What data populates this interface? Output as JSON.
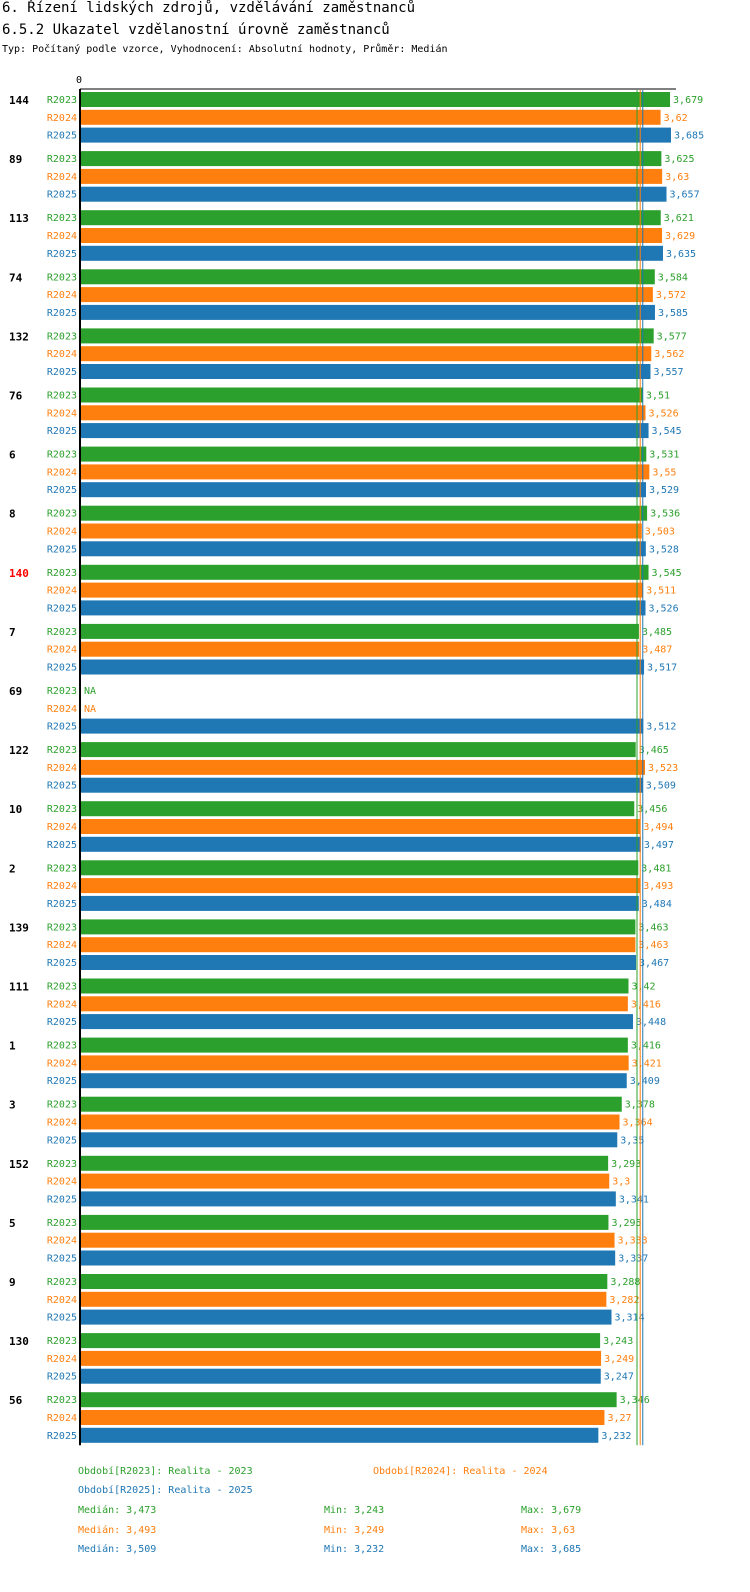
{
  "header": {
    "title": "6. Řízení lidských zdrojů, vzdělávání zaměstnanců",
    "subtitle": "6.5.2 Ukazatel vzdělanostní úrovně zaměstnanců",
    "type_line": "Typ: Počítaný podle vzorce, Vyhodnocení: Absolutní hodnoty, Průměr: Medián"
  },
  "colors": {
    "R2023": "#2ca02c",
    "R2024": "#ff7f0e",
    "R2025": "#1f77b4",
    "highlight": "#ff0000",
    "axis": "#000000"
  },
  "chart_data": {
    "type": "bar",
    "orientation": "horizontal",
    "axis_zero_label": "0",
    "xlim": [
      0,
      3.685
    ],
    "series_names": [
      "R2023",
      "R2024",
      "R2025"
    ],
    "highlighted_category": "140",
    "na_label": "NA",
    "median_lines": [
      3.473,
      3.493,
      3.509
    ],
    "categories": [
      {
        "label": "144",
        "values": [
          3.679,
          3.62,
          3.685
        ],
        "labels": [
          "3,679",
          "3,62",
          "3,685"
        ]
      },
      {
        "label": "89",
        "values": [
          3.625,
          3.63,
          3.657
        ],
        "labels": [
          "3,625",
          "3,63",
          "3,657"
        ]
      },
      {
        "label": "113",
        "values": [
          3.621,
          3.629,
          3.635
        ],
        "labels": [
          "3,621",
          "3,629",
          "3,635"
        ]
      },
      {
        "label": "74",
        "values": [
          3.584,
          3.572,
          3.585
        ],
        "labels": [
          "3,584",
          "3,572",
          "3,585"
        ]
      },
      {
        "label": "132",
        "values": [
          3.577,
          3.562,
          3.557
        ],
        "labels": [
          "3,577",
          "3,562",
          "3,557"
        ]
      },
      {
        "label": "76",
        "values": [
          3.51,
          3.526,
          3.545
        ],
        "labels": [
          "3,51",
          "3,526",
          "3,545"
        ]
      },
      {
        "label": "6",
        "values": [
          3.531,
          3.55,
          3.529
        ],
        "labels": [
          "3,531",
          "3,55",
          "3,529"
        ]
      },
      {
        "label": "8",
        "values": [
          3.536,
          3.503,
          3.528
        ],
        "labels": [
          "3,536",
          "3,503",
          "3,528"
        ]
      },
      {
        "label": "140",
        "values": [
          3.545,
          3.511,
          3.526
        ],
        "labels": [
          "3,545",
          "3,511",
          "3,526"
        ]
      },
      {
        "label": "7",
        "values": [
          3.485,
          3.487,
          3.517
        ],
        "labels": [
          "3,485",
          "3,487",
          "3,517"
        ]
      },
      {
        "label": "69",
        "values": [
          null,
          null,
          3.512
        ],
        "labels": [
          "NA",
          "NA",
          "3,512"
        ]
      },
      {
        "label": "122",
        "values": [
          3.465,
          3.523,
          3.509
        ],
        "labels": [
          "3,465",
          "3,523",
          "3,509"
        ]
      },
      {
        "label": "10",
        "values": [
          3.456,
          3.494,
          3.497
        ],
        "labels": [
          "3,456",
          "3,494",
          "3,497"
        ]
      },
      {
        "label": "2",
        "values": [
          3.481,
          3.493,
          3.484
        ],
        "labels": [
          "3,481",
          "3,493",
          "3,484"
        ]
      },
      {
        "label": "139",
        "values": [
          3.463,
          3.463,
          3.467
        ],
        "labels": [
          "3,463",
          "3,463",
          "3,467"
        ]
      },
      {
        "label": "111",
        "values": [
          3.42,
          3.416,
          3.448
        ],
        "labels": [
          "3,42",
          "3,416",
          "3,448"
        ]
      },
      {
        "label": "1",
        "values": [
          3.416,
          3.421,
          3.409
        ],
        "labels": [
          "3,416",
          "3,421",
          "3,409"
        ]
      },
      {
        "label": "3",
        "values": [
          3.378,
          3.364,
          3.35
        ],
        "labels": [
          "3,378",
          "3,364",
          "3,35"
        ]
      },
      {
        "label": "152",
        "values": [
          3.293,
          3.3,
          3.341
        ],
        "labels": [
          "3,293",
          "3,3",
          "3,341"
        ]
      },
      {
        "label": "5",
        "values": [
          3.295,
          3.333,
          3.337
        ],
        "labels": [
          "3,295",
          "3,333",
          "3,337"
        ]
      },
      {
        "label": "9",
        "values": [
          3.288,
          3.282,
          3.314
        ],
        "labels": [
          "3,288",
          "3,282",
          "3,314"
        ]
      },
      {
        "label": "130",
        "values": [
          3.243,
          3.249,
          3.247
        ],
        "labels": [
          "3,243",
          "3,249",
          "3,247"
        ]
      },
      {
        "label": "56",
        "values": [
          3.346,
          3.27,
          3.232
        ],
        "labels": [
          "3,346",
          "3,27",
          "3,232"
        ]
      }
    ]
  },
  "legend": {
    "period_r2023": "Období[R2023]: Realita - 2023",
    "period_r2024": "Období[R2024]: Realita - 2024",
    "period_r2025": "Období[R2025]: Realita - 2025",
    "r2023": {
      "median": "Medián: 3,473",
      "min": "Min: 3,243",
      "max": "Max: 3,679"
    },
    "r2024": {
      "median": "Medián: 3,493",
      "min": "Min: 3,249",
      "max": "Max: 3,63"
    },
    "r2025": {
      "median": "Medián: 3,509",
      "min": "Min: 3,232",
      "max": "Max: 3,685"
    }
  }
}
